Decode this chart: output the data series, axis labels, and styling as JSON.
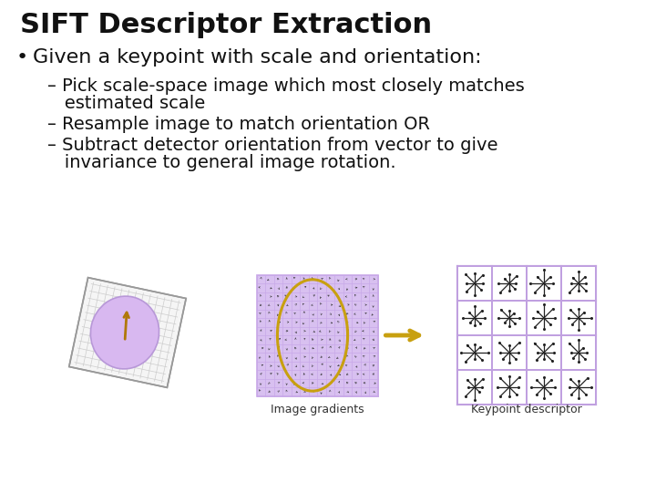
{
  "title": "SIFT Descriptor Extraction",
  "bullet": "Given a keypoint with scale and orientation:",
  "sub1_a": "– Pick scale-space image which most closely matches",
  "sub1_b": "   estimated scale",
  "sub2": "– Resample image to match orientation OR",
  "sub3_a": "– Subtract detector orientation from vector to give",
  "sub3_b": "   invariance to general image rotation.",
  "label_left": "Image gradients",
  "label_right": "Keypoint descriptor",
  "bg_color": "#ffffff",
  "title_fontsize": 22,
  "bullet_fontsize": 16,
  "sub_fontsize": 14,
  "label_fontsize": 9,
  "grid_color": "#c8a8e8",
  "grid_fill": "#d8c0f0",
  "ellipse_color": "#c8a010",
  "arrow_color": "#c8a010",
  "descriptor_bg": "#e8d8f8",
  "descriptor_border": "#c0a0e0",
  "text_color": "#111111"
}
